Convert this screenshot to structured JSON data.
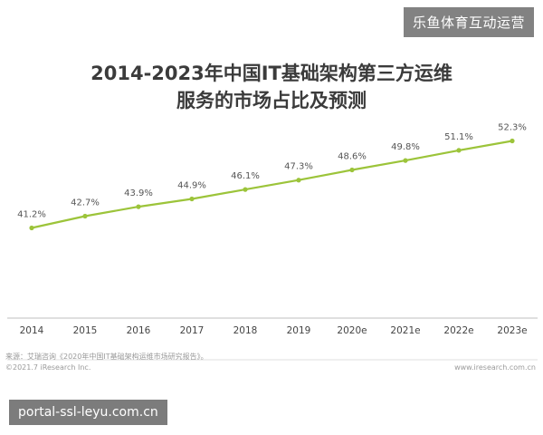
{
  "watermark_top": "乐鱼体育互动运营",
  "watermark_bottom": "portal-ssl-leyu.com.cn",
  "footer": {
    "source": "来源：艾瑞咨询《2020年中国IT基础架构运维市场研究报告》。",
    "copyright": "©2021.7 iResearch Inc.",
    "url": "www.iresearch.com.cn"
  },
  "chart_data": {
    "type": "line",
    "title_line1": "2014-2023年中国IT基础架构第三方运维",
    "title_line2": "服务的市场占比及预测",
    "categories": [
      "2014",
      "2015",
      "2016",
      "2017",
      "2018",
      "2019",
      "2020e",
      "2021e",
      "2022e",
      "2023e"
    ],
    "values": [
      41.2,
      42.7,
      43.9,
      44.9,
      46.1,
      47.3,
      48.6,
      49.8,
      51.1,
      52.3
    ],
    "value_labels": [
      "41.2%",
      "42.7%",
      "43.9%",
      "44.9%",
      "46.1%",
      "47.3%",
      "48.6%",
      "49.8%",
      "51.1%",
      "52.3%"
    ],
    "line_color": "#9cc43a",
    "grid": false,
    "legend": "none"
  }
}
